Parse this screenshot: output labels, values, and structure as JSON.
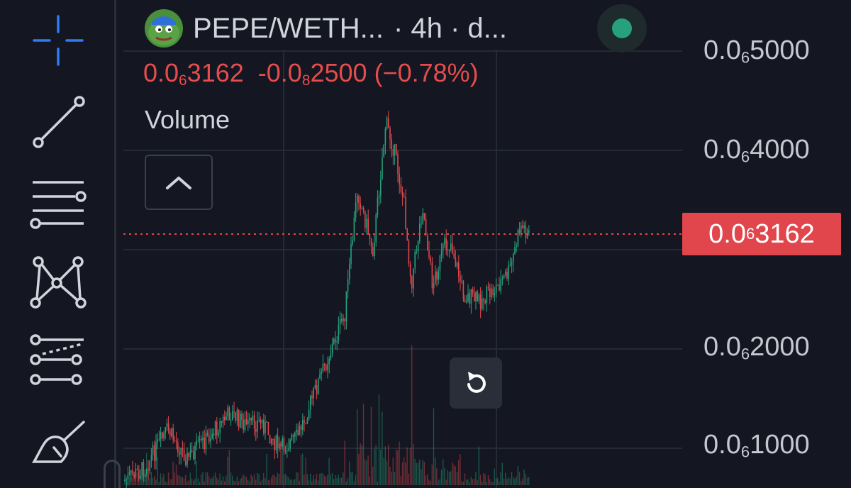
{
  "header": {
    "pair": "PEPE/WETH...",
    "interval_text": "· 4h · d...",
    "logo_icon": "pepe-frog-icon",
    "status_color": "#26a17b"
  },
  "legend": {
    "price_prefix": "0.0",
    "price_sub": "6",
    "price_suffix": "3162",
    "change_prefix": "-0.0",
    "change_sub": "8",
    "change_suffix": "2500",
    "change_pct": "(−0.78%)",
    "color": "#e74c4c"
  },
  "volume_label": "Volume",
  "toolbar": {
    "tools": [
      "crosshair-icon",
      "trend-line-icon",
      "horizontal-lines-icon",
      "pattern-icon",
      "fib-tools-icon",
      "brush-icon"
    ]
  },
  "price_axis": [
    {
      "prefix": "0.0",
      "sub": "6",
      "suffix": "5000"
    },
    {
      "prefix": "0.0",
      "sub": "6",
      "suffix": "4000"
    },
    {
      "prefix": "0.0",
      "sub": "6",
      "suffix": "2000"
    },
    {
      "prefix": "0.0",
      "sub": "6",
      "suffix": "1000"
    }
  ],
  "last_price_tag": {
    "prefix": "0.0",
    "sub": "6",
    "suffix": "3162",
    "color": "#e0464c"
  },
  "colors": {
    "up": "#26a17b",
    "down": "#e0464c",
    "grid": "#262a35"
  }
}
